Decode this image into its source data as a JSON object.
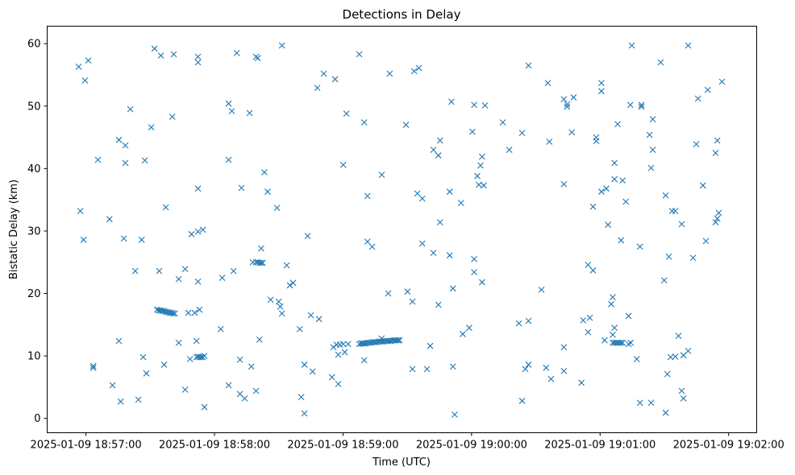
{
  "chart_data": {
    "type": "scatter",
    "title": "Detections in Delay",
    "xlabel": "Time (UTC)",
    "ylabel": "Bistatic Delay (km)",
    "x_units": "seconds after 2025-01-09 18:57:00 UTC",
    "xlim": [
      -18.1,
      313.1
    ],
    "ylim": [
      -2.3,
      62.8
    ],
    "grid": false,
    "marker": "x",
    "color": "#1f77b4",
    "x_ticks": [
      {
        "value": 0,
        "label": "2025-01-09 18:57:00"
      },
      {
        "value": 60,
        "label": "2025-01-09 18:58:00"
      },
      {
        "value": 120,
        "label": "2025-01-09 18:59:00"
      },
      {
        "value": 180,
        "label": "2025-01-09 19:00:00"
      },
      {
        "value": 240,
        "label": "2025-01-09 19:01:00"
      },
      {
        "value": 300,
        "label": "2025-01-09 19:02:00"
      }
    ],
    "y_ticks": [
      {
        "value": 0,
        "label": "0"
      },
      {
        "value": 10,
        "label": "10"
      },
      {
        "value": 20,
        "label": "20"
      },
      {
        "value": 30,
        "label": "30"
      },
      {
        "value": 40,
        "label": "40"
      },
      {
        "value": 50,
        "label": "50"
      },
      {
        "value": 60,
        "label": "60"
      }
    ],
    "points": [
      [
        -3.4,
        56.3
      ],
      [
        -0.4,
        54.1
      ],
      [
        1.1,
        57.3
      ],
      [
        -2.6,
        33.2
      ],
      [
        -1.1,
        28.6
      ],
      [
        5.6,
        41.4
      ],
      [
        3.4,
        8.4
      ],
      [
        3.4,
        8.1
      ],
      [
        11,
        31.9
      ],
      [
        12.4,
        5.3
      ],
      [
        15.4,
        44.6
      ],
      [
        18.4,
        43.7
      ],
      [
        18.4,
        40.9
      ],
      [
        20.7,
        49.5
      ],
      [
        15.4,
        12.4
      ],
      [
        16.2,
        2.7
      ],
      [
        17.7,
        28.8
      ],
      [
        23,
        23.6
      ],
      [
        24.5,
        3.0
      ],
      [
        26,
        28.6
      ],
      [
        26.7,
        9.8
      ],
      [
        28.2,
        7.2
      ],
      [
        27.5,
        41.3
      ],
      [
        30.5,
        46.6
      ],
      [
        32,
        59.2
      ],
      [
        35,
        58.1
      ],
      [
        41,
        58.3
      ],
      [
        40.3,
        48.3
      ],
      [
        34.2,
        23.6
      ],
      [
        37.3,
        33.8
      ],
      [
        36.5,
        8.6
      ],
      [
        43.3,
        12.1
      ],
      [
        43.3,
        22.3
      ],
      [
        46.3,
        23.9
      ],
      [
        46.3,
        4.6
      ],
      [
        48.6,
        9.5
      ],
      [
        49.3,
        29.5
      ],
      [
        52.3,
        29.9
      ],
      [
        54.6,
        30.2
      ],
      [
        51.6,
        12.4
      ],
      [
        52.3,
        21.9
      ],
      [
        52.3,
        57.9
      ],
      [
        52.3,
        57.0
      ],
      [
        52.3,
        36.8
      ],
      [
        55.3,
        1.8
      ],
      [
        47.8,
        16.9
      ],
      [
        50.8,
        16.9
      ],
      [
        53,
        17.4
      ],
      [
        33.2,
        17.4
      ],
      [
        34.0,
        17.3
      ],
      [
        34.7,
        17.3
      ],
      [
        35.5,
        17.2
      ],
      [
        36.2,
        17.2
      ],
      [
        37.0,
        17.1
      ],
      [
        37.7,
        17.0
      ],
      [
        38.5,
        17.0
      ],
      [
        39.2,
        16.9
      ],
      [
        40.0,
        16.9
      ],
      [
        40.7,
        16.8
      ],
      [
        41.5,
        16.8
      ],
      [
        51.6,
        9.8
      ],
      [
        52.3,
        9.9
      ],
      [
        53.0,
        9.8
      ],
      [
        53.8,
        9.8
      ],
      [
        54.5,
        9.8
      ],
      [
        55.3,
        10.0
      ],
      [
        62.9,
        14.3
      ],
      [
        66.6,
        50.4
      ],
      [
        68.1,
        49.2
      ],
      [
        66.6,
        41.4
      ],
      [
        68.9,
        23.6
      ],
      [
        63.6,
        22.5
      ],
      [
        66.6,
        5.3
      ],
      [
        70.4,
        58.5
      ],
      [
        72.6,
        36.9
      ],
      [
        71.9,
        9.4
      ],
      [
        71.9,
        3.9
      ],
      [
        74.1,
        3.2
      ],
      [
        76.4,
        48.9
      ],
      [
        77.2,
        8.3
      ],
      [
        79.4,
        4.4
      ],
      [
        79.4,
        57.9
      ],
      [
        80.2,
        57.7
      ],
      [
        81,
        12.6
      ],
      [
        81.8,
        27.2
      ],
      [
        83.3,
        39.4
      ],
      [
        84.8,
        36.3
      ],
      [
        77.9,
        25.0
      ],
      [
        79.4,
        25.0
      ],
      [
        80.2,
        25.0
      ],
      [
        81.0,
        24.9
      ],
      [
        81.8,
        24.9
      ],
      [
        82.5,
        24.9
      ],
      [
        86.2,
        19.0
      ],
      [
        89.2,
        33.7
      ],
      [
        90,
        18.7
      ],
      [
        90.7,
        17.9
      ],
      [
        91.5,
        16.8
      ],
      [
        91.5,
        59.7
      ],
      [
        93.7,
        24.5
      ],
      [
        95.2,
        21.3
      ],
      [
        96.7,
        21.7
      ],
      [
        99.8,
        14.3
      ],
      [
        100.5,
        3.4
      ],
      [
        102,
        8.6
      ],
      [
        102,
        0.8
      ],
      [
        103.5,
        29.2
      ],
      [
        105.8,
        7.5
      ],
      [
        105,
        16.5
      ],
      [
        108.8,
        15.9
      ],
      [
        108,
        52.9
      ],
      [
        111,
        55.2
      ],
      [
        114.8,
        6.6
      ],
      [
        116.3,
        54.3
      ],
      [
        117.8,
        5.5
      ],
      [
        115.5,
        11.4
      ],
      [
        117.0,
        11.8
      ],
      [
        118.5,
        11.8
      ],
      [
        120.1,
        11.9
      ],
      [
        122.4,
        11.9
      ],
      [
        117.8,
        10.2
      ],
      [
        120.8,
        10.6
      ],
      [
        120.1,
        40.6
      ],
      [
        121.6,
        48.8
      ],
      [
        127.6,
        58.3
      ],
      [
        129.9,
        47.4
      ],
      [
        131.4,
        35.6
      ],
      [
        131.4,
        28.3
      ],
      [
        133.6,
        27.5
      ],
      [
        129.9,
        9.3
      ],
      [
        138.1,
        39.0
      ],
      [
        141.1,
        20.0
      ],
      [
        141.8,
        55.2
      ],
      [
        127.6,
        11.9
      ],
      [
        128.4,
        12.0
      ],
      [
        129.1,
        12.0
      ],
      [
        129.9,
        12.0
      ],
      [
        130.6,
        12.0
      ],
      [
        131.4,
        12.1
      ],
      [
        132.1,
        12.1
      ],
      [
        132.9,
        12.1
      ],
      [
        133.6,
        12.2
      ],
      [
        134.4,
        12.2
      ],
      [
        135.1,
        12.2
      ],
      [
        135.9,
        12.2
      ],
      [
        136.6,
        12.3
      ],
      [
        137.4,
        12.3
      ],
      [
        138.1,
        12.3
      ],
      [
        138.9,
        12.3
      ],
      [
        139.6,
        12.4
      ],
      [
        140.4,
        12.4
      ],
      [
        141.1,
        12.4
      ],
      [
        141.9,
        12.4
      ],
      [
        142.6,
        12.4
      ],
      [
        143.4,
        12.5
      ],
      [
        144.2,
        12.5
      ],
      [
        144.9,
        12.5
      ],
      [
        145.7,
        12.5
      ],
      [
        146.4,
        12.5
      ],
      [
        138.0,
        12.8
      ],
      [
        149.4,
        47.0
      ],
      [
        150.1,
        20.3
      ],
      [
        152.4,
        18.7
      ],
      [
        152.4,
        7.9
      ],
      [
        153.2,
        55.6
      ],
      [
        155.4,
        56.1
      ],
      [
        154.7,
        36.0
      ],
      [
        157,
        35.2
      ],
      [
        157,
        28.0
      ],
      [
        159.2,
        7.9
      ],
      [
        160.7,
        11.6
      ],
      [
        162.2,
        26.5
      ],
      [
        162.2,
        43.0
      ],
      [
        164.5,
        42.1
      ],
      [
        165.3,
        44.5
      ],
      [
        165.3,
        31.4
      ],
      [
        164.5,
        18.2
      ],
      [
        169.8,
        36.3
      ],
      [
        169.8,
        26.1
      ],
      [
        170.6,
        50.7
      ],
      [
        171.3,
        20.8
      ],
      [
        171.3,
        8.3
      ],
      [
        172.1,
        0.6
      ],
      [
        175.1,
        34.5
      ],
      [
        175.9,
        13.5
      ],
      [
        178.9,
        14.5
      ],
      [
        180.4,
        45.9
      ],
      [
        181.2,
        50.2
      ],
      [
        181.2,
        25.5
      ],
      [
        181.2,
        23.4
      ],
      [
        182.7,
        38.8
      ],
      [
        184.2,
        40.5
      ],
      [
        184.9,
        41.9
      ],
      [
        183.4,
        37.4
      ],
      [
        185.7,
        37.3
      ],
      [
        186.3,
        50.1
      ],
      [
        184.9,
        21.8
      ],
      [
        194.6,
        47.4
      ],
      [
        197.6,
        43.0
      ],
      [
        202.1,
        15.2
      ],
      [
        203.6,
        2.8
      ],
      [
        203.6,
        45.7
      ],
      [
        205.1,
        7.9
      ],
      [
        206.6,
        15.6
      ],
      [
        206.6,
        8.6
      ],
      [
        206.6,
        56.5
      ],
      [
        212.6,
        20.6
      ],
      [
        214.8,
        8.1
      ],
      [
        215.6,
        53.7
      ],
      [
        216.3,
        44.3
      ],
      [
        217.1,
        6.3
      ],
      [
        223.1,
        11.4
      ],
      [
        223.1,
        7.6
      ],
      [
        223.1,
        37.5
      ],
      [
        223.1,
        51.1
      ],
      [
        224.6,
        50.3
      ],
      [
        224.6,
        49.9
      ],
      [
        227.6,
        51.4
      ],
      [
        226.8,
        45.8
      ],
      [
        231.3,
        5.7
      ],
      [
        232.1,
        15.7
      ],
      [
        234.4,
        13.8
      ],
      [
        235.2,
        16.1
      ],
      [
        234.4,
        24.6
      ],
      [
        236.7,
        23.7
      ],
      [
        236.7,
        33.9
      ],
      [
        238.2,
        45.0
      ],
      [
        238.2,
        44.4
      ],
      [
        240.6,
        53.7
      ],
      [
        240.6,
        52.4
      ],
      [
        240.6,
        36.3
      ],
      [
        242.9,
        36.8
      ],
      [
        242.1,
        12.5
      ],
      [
        243.7,
        31.0
      ],
      [
        245.2,
        18.3
      ],
      [
        245.9,
        19.4
      ],
      [
        246.7,
        14.5
      ],
      [
        245.9,
        13.4
      ],
      [
        246.7,
        40.9
      ],
      [
        246.7,
        38.3
      ],
      [
        248.2,
        47.1
      ],
      [
        249.8,
        28.5
      ],
      [
        250.5,
        38.1
      ],
      [
        252,
        34.7
      ],
      [
        245.9,
        12.1
      ],
      [
        246.7,
        12.1
      ],
      [
        247.5,
        12.1
      ],
      [
        248.2,
        12.1
      ],
      [
        249.0,
        12.1
      ],
      [
        249.8,
        12.1
      ],
      [
        250.5,
        12.1
      ],
      [
        253.3,
        11.9
      ],
      [
        254.3,
        12.1
      ],
      [
        253.3,
        16.4
      ],
      [
        254.8,
        59.7
      ],
      [
        254.1,
        50.2
      ],
      [
        257.1,
        9.5
      ],
      [
        258.6,
        27.5
      ],
      [
        258.6,
        2.5
      ],
      [
        259.3,
        50.2
      ],
      [
        259.3,
        49.9
      ],
      [
        263.8,
        2.5
      ],
      [
        263.1,
        45.4
      ],
      [
        264.6,
        47.9
      ],
      [
        264.6,
        43.0
      ],
      [
        263.8,
        40.1
      ],
      [
        268.3,
        57.0
      ],
      [
        269.9,
        22.1
      ],
      [
        270.6,
        35.7
      ],
      [
        270.6,
        0.9
      ],
      [
        271.4,
        7.1
      ],
      [
        272.1,
        25.9
      ],
      [
        272.9,
        9.8
      ],
      [
        273.6,
        33.2
      ],
      [
        275.1,
        9.9
      ],
      [
        275.1,
        33.2
      ],
      [
        276.6,
        13.2
      ],
      [
        278.1,
        31.1
      ],
      [
        278.1,
        4.4
      ],
      [
        278.9,
        3.2
      ],
      [
        278.9,
        10.1
      ],
      [
        281.1,
        59.7
      ],
      [
        281.1,
        10.8
      ],
      [
        283.4,
        25.7
      ],
      [
        284.9,
        43.9
      ],
      [
        285.7,
        51.2
      ],
      [
        288,
        37.3
      ],
      [
        289.4,
        28.4
      ],
      [
        290.2,
        52.6
      ],
      [
        293.9,
        31.4
      ],
      [
        293.9,
        42.5
      ],
      [
        294.7,
        44.5
      ],
      [
        294.7,
        32.0
      ],
      [
        295.4,
        32.9
      ],
      [
        296.9,
        53.9
      ]
    ]
  }
}
